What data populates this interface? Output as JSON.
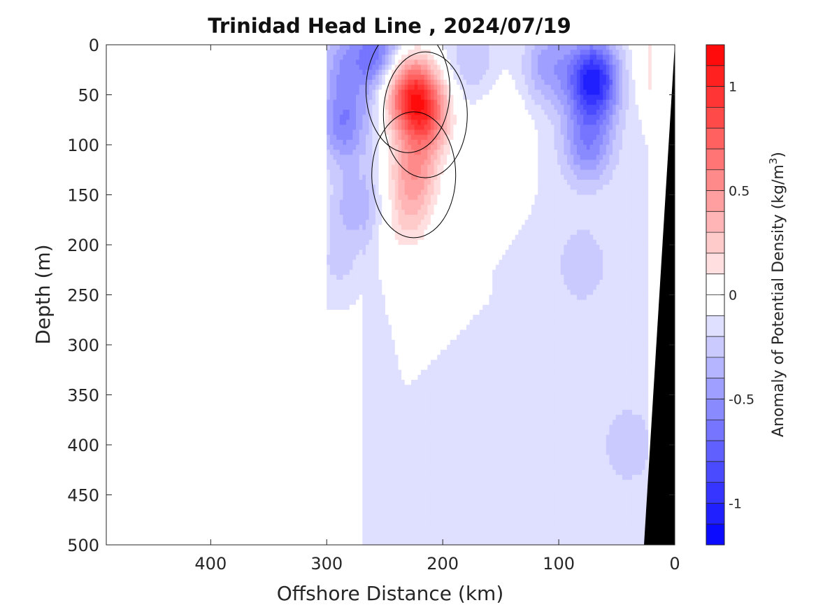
{
  "chart_data": {
    "type": "heatmap",
    "title": "Trinidad Head Line , 2024/07/19",
    "xlabel": "Offshore Distance (km)",
    "ylabel": "Depth (m)",
    "colorbar_label": "Anomaly of Potential Density (kg/m",
    "colorbar_label_sup": "3",
    "colorbar_label_close": ")",
    "xlim": [
      490,
      0
    ],
    "ylim": [
      500,
      0
    ],
    "x_reversed": true,
    "y_reversed": true,
    "x_ticks": [
      400,
      300,
      200,
      100,
      0
    ],
    "y_ticks": [
      0,
      50,
      100,
      150,
      200,
      250,
      300,
      350,
      400,
      450,
      500
    ],
    "colorbar_range": [
      -1.2,
      1.2
    ],
    "colorbar_step": 0.1,
    "colorbar_ticks": [
      1,
      0.5,
      0,
      -0.5,
      -1
    ],
    "colorbar_tick_labels": [
      "1",
      "0.5",
      "0",
      "-0.5",
      "-1"
    ],
    "zero_contour": true,
    "bathymetry_color": "#000000",
    "anomalies": [
      {
        "x": 285,
        "y": 20,
        "value": -0.35
      },
      {
        "x": 255,
        "y": 8,
        "value": -0.55
      },
      {
        "x": 285,
        "y": 80,
        "value": -0.5
      },
      {
        "x": 275,
        "y": 160,
        "value": -0.3
      },
      {
        "x": 290,
        "y": 220,
        "value": -0.15
      },
      {
        "x": 230,
        "y": 45,
        "value": 0.8
      },
      {
        "x": 215,
        "y": 70,
        "value": 0.75
      },
      {
        "x": 225,
        "y": 130,
        "value": 0.5
      },
      {
        "x": 230,
        "y": 180,
        "value": 0.25
      },
      {
        "x": 150,
        "y": 85,
        "value": 0.2
      },
      {
        "x": 140,
        "y": 5,
        "value": 0.05
      },
      {
        "x": 175,
        "y": 15,
        "value": -0.2
      },
      {
        "x": 110,
        "y": 20,
        "value": -0.35
      },
      {
        "x": 70,
        "y": 35,
        "value": -0.95
      },
      {
        "x": 75,
        "y": 100,
        "value": -0.45
      },
      {
        "x": 80,
        "y": 220,
        "value": -0.2
      },
      {
        "x": 20,
        "y": 20,
        "value": 0.15
      },
      {
        "x": 150,
        "y": 400,
        "value": -0.1
      },
      {
        "x": 40,
        "y": 400,
        "value": -0.2
      }
    ]
  }
}
